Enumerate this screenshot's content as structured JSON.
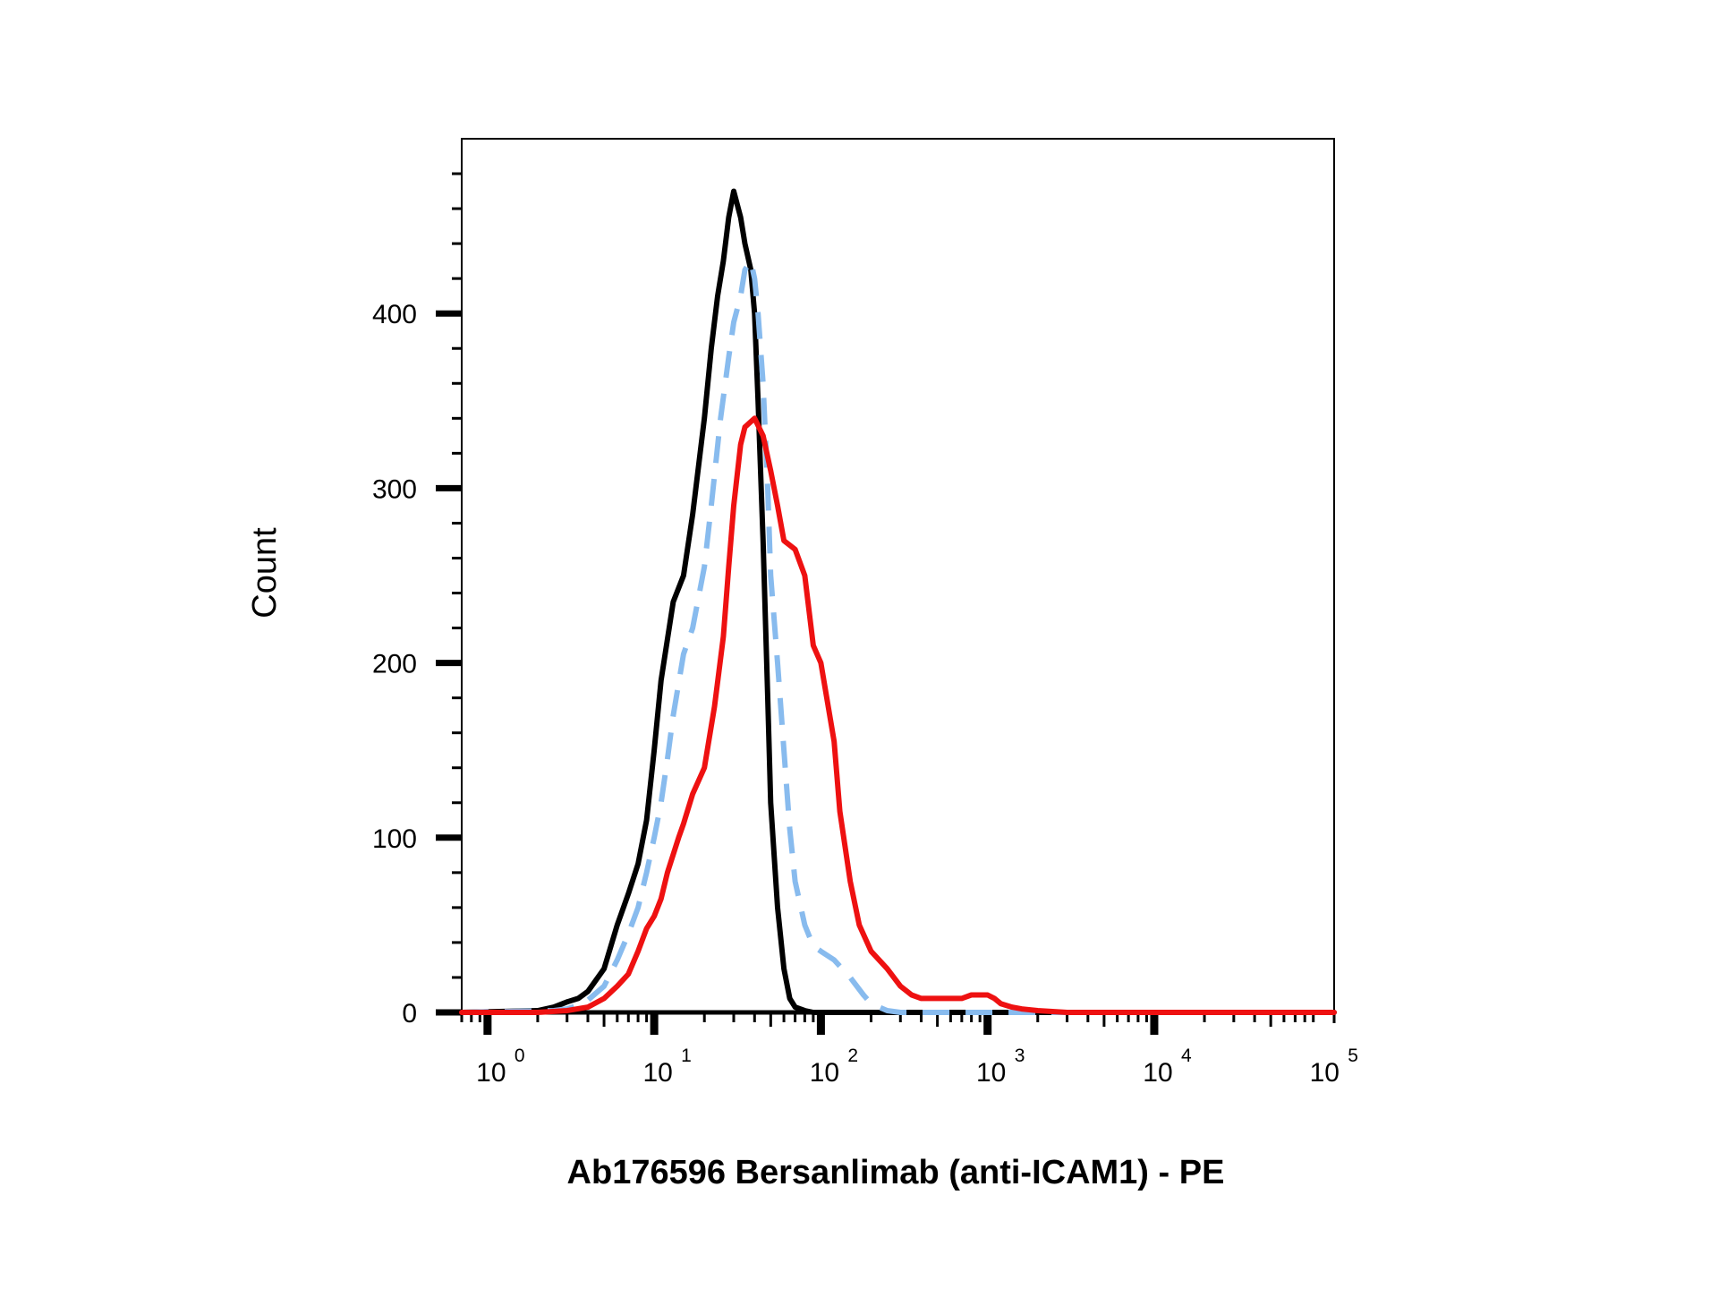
{
  "chart_data": {
    "type": "line",
    "title": "",
    "xlabel": "Ab176596 Bersanlimab (anti-ICAM1) - PE",
    "ylabel": "Count",
    "x_scale": "log",
    "xlim": [
      0.7,
      120000
    ],
    "ylim": [
      0,
      500
    ],
    "x_ticks": [
      {
        "base": "10",
        "exp": "0",
        "value": 1
      },
      {
        "base": "10",
        "exp": "1",
        "value": 10
      },
      {
        "base": "10",
        "exp": "2",
        "value": 100
      },
      {
        "base": "10",
        "exp": "3",
        "value": 1000
      },
      {
        "base": "10",
        "exp": "4",
        "value": 10000
      },
      {
        "base": "10",
        "exp": "5",
        "value": 100000
      }
    ],
    "y_ticks": [
      "0",
      "100",
      "200",
      "300",
      "400"
    ],
    "y_tick_values": [
      0,
      100,
      200,
      300,
      400
    ],
    "grid": false,
    "legend": "none",
    "series": [
      {
        "color": "#000000",
        "style": "solid",
        "x": [
          0.7,
          2.0,
          2.5,
          3.0,
          3.5,
          4.0,
          5.0,
          6.0,
          7.0,
          8.0,
          9.0,
          10,
          11,
          13,
          15,
          17,
          20,
          22,
          24,
          26,
          28,
          30,
          33,
          35,
          38,
          40,
          42,
          45,
          48,
          50,
          55,
          60,
          65,
          70,
          80,
          90,
          100,
          150,
          300,
          120000
        ],
        "y": [
          0,
          1,
          3,
          6,
          8,
          12,
          25,
          50,
          68,
          85,
          110,
          150,
          190,
          235,
          250,
          285,
          340,
          380,
          410,
          430,
          455,
          470,
          455,
          440,
          425,
          400,
          350,
          270,
          180,
          120,
          60,
          25,
          8,
          3,
          1,
          0,
          0,
          0,
          0,
          0
        ]
      },
      {
        "color": "#88bbee",
        "style": "dashed",
        "x": [
          0.7,
          2.5,
          3.0,
          3.5,
          4.0,
          5.0,
          6.0,
          7.0,
          8.0,
          9.0,
          10,
          11,
          12,
          13,
          15,
          17,
          20,
          22,
          25,
          28,
          30,
          33,
          35,
          38,
          40,
          42,
          45,
          48,
          50,
          55,
          60,
          65,
          70,
          80,
          90,
          100,
          120,
          150,
          180,
          200,
          250,
          300,
          400,
          1000,
          120000
        ],
        "y": [
          0,
          1,
          2,
          4,
          7,
          15,
          30,
          45,
          60,
          80,
          100,
          120,
          145,
          170,
          205,
          220,
          255,
          290,
          340,
          375,
          395,
          410,
          425,
          430,
          420,
          400,
          360,
          300,
          250,
          200,
          150,
          105,
          75,
          50,
          38,
          35,
          30,
          20,
          10,
          5,
          1,
          0,
          0,
          0,
          0
        ]
      },
      {
        "color": "#ee1111",
        "style": "solid",
        "x": [
          0.7,
          2.0,
          3.0,
          4.0,
          5.0,
          6.0,
          7.0,
          8.0,
          9.0,
          10,
          11,
          12,
          14,
          15,
          17,
          20,
          23,
          26,
          28,
          30,
          33,
          35,
          40,
          45,
          50,
          55,
          60,
          70,
          80,
          90,
          100,
          120,
          130,
          150,
          170,
          200,
          250,
          300,
          350,
          400,
          500,
          600,
          700,
          800,
          900,
          1000,
          1100,
          1200,
          1400,
          1600,
          2000,
          3000,
          10000,
          120000
        ],
        "y": [
          0,
          0,
          1,
          3,
          8,
          15,
          22,
          35,
          48,
          55,
          65,
          80,
          100,
          108,
          125,
          140,
          175,
          215,
          255,
          290,
          325,
          335,
          340,
          330,
          310,
          290,
          270,
          265,
          250,
          210,
          200,
          155,
          115,
          75,
          50,
          35,
          25,
          15,
          10,
          8,
          8,
          8,
          8,
          10,
          10,
          10,
          8,
          5,
          3,
          2,
          1,
          0,
          0,
          0
        ]
      }
    ]
  }
}
